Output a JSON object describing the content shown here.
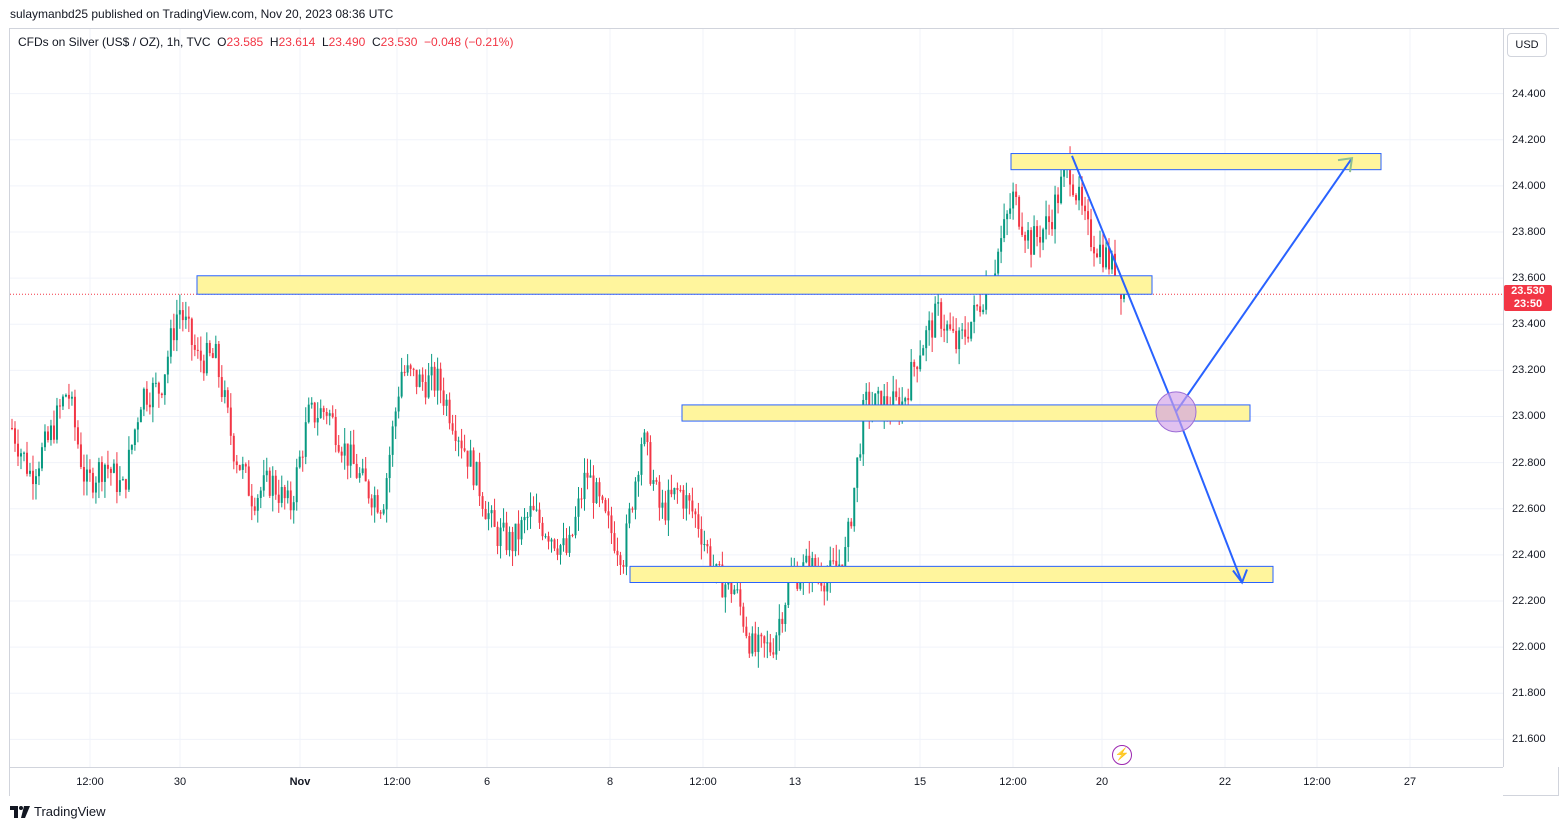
{
  "header": {
    "publish_line": "sulaymanbd25 published on TradingView.com, Nov 20, 2023 08:36 UTC"
  },
  "symbol": {
    "description": "CFDs on Silver (US$ / OZ), 1h, TVC",
    "open_label": "O",
    "open": "23.585",
    "high_label": "H",
    "high": "23.614",
    "low_label": "L",
    "low": "23.490",
    "close_label": "C",
    "close": "23.530",
    "change": "−0.048 (−0.21%)"
  },
  "currency_button": "USD",
  "price_axis": {
    "ticks": [
      "24.400",
      "24.200",
      "24.000",
      "23.800",
      "23.600",
      "23.400",
      "23.200",
      "23.000",
      "22.800",
      "22.600",
      "22.400",
      "22.200",
      "22.000",
      "21.800",
      "21.600"
    ]
  },
  "last_price": {
    "price": "23.530",
    "countdown": "23:50"
  },
  "time_axis": {
    "labels": [
      "12:00",
      "30",
      "Nov",
      "12:00",
      "6",
      "8",
      "12:00",
      "13",
      "15",
      "12:00",
      "20",
      "22",
      "12:00",
      "27"
    ]
  },
  "footer": {
    "brand": "TradingView"
  },
  "icons": {
    "lightning": "lightning-icon",
    "logo": "tradingview-logo-icon"
  },
  "colors": {
    "up": "#089981",
    "down": "#f23645",
    "zone_fill": "#fff59d",
    "zone_border": "#2962ff",
    "projection": "#2962ff",
    "marker": "#d1a0e8"
  },
  "chart_data": {
    "type": "candlestick",
    "interval": "1h",
    "ylim": [
      21.48,
      24.68
    ],
    "annotated_zones": [
      {
        "low": 23.53,
        "high": 23.61
      },
      {
        "low": 22.98,
        "high": 23.05
      },
      {
        "low": 22.28,
        "high": 22.35
      },
      {
        "low": 24.07,
        "high": 24.14
      }
    ],
    "price_series": [
      {
        "t": "Oct 27",
        "price": 22.95
      },
      {
        "t": "Oct 27",
        "price": 22.75
      },
      {
        "t": "Oct 27",
        "price": 22.9
      },
      {
        "t": "Oct 30",
        "price": 23.12
      },
      {
        "t": "Oct 30",
        "price": 22.7
      },
      {
        "t": "Oct 30",
        "price": 22.8
      },
      {
        "t": "Oct 30",
        "price": 22.68
      },
      {
        "t": "Oct 31",
        "price": 23.1
      },
      {
        "t": "Oct 31",
        "price": 23.12
      },
      {
        "t": "Oct 31",
        "price": 23.48
      },
      {
        "t": "Oct 31",
        "price": 23.25
      },
      {
        "t": "Nov 1",
        "price": 23.25
      },
      {
        "t": "Nov 1",
        "price": 22.85
      },
      {
        "t": "Nov 1",
        "price": 22.65
      },
      {
        "t": "Nov 1",
        "price": 22.72
      },
      {
        "t": "Nov 2",
        "price": 22.6
      },
      {
        "t": "Nov 2",
        "price": 23.0
      },
      {
        "t": "Nov 2",
        "price": 23.03
      },
      {
        "t": "Nov 2",
        "price": 22.85
      },
      {
        "t": "Nov 3",
        "price": 22.7
      },
      {
        "t": "Nov 3",
        "price": 22.62
      },
      {
        "t": "Nov 3",
        "price": 23.2
      },
      {
        "t": "Nov 6",
        "price": 23.15
      },
      {
        "t": "Nov 6",
        "price": 23.15
      },
      {
        "t": "Nov 6",
        "price": 22.95
      },
      {
        "t": "Nov 7",
        "price": 22.75
      },
      {
        "t": "Nov 7",
        "price": 22.5
      },
      {
        "t": "Nov 7",
        "price": 22.45
      },
      {
        "t": "Nov 7",
        "price": 22.58
      },
      {
        "t": "Nov 8",
        "price": 22.5
      },
      {
        "t": "Nov 8",
        "price": 22.4
      },
      {
        "t": "Nov 8",
        "price": 22.76
      },
      {
        "t": "Nov 8",
        "price": 22.55
      },
      {
        "t": "Nov 8",
        "price": 22.4
      },
      {
        "t": "Nov 9",
        "price": 22.92
      },
      {
        "t": "Nov 9",
        "price": 22.58
      },
      {
        "t": "Nov 9",
        "price": 22.68
      },
      {
        "t": "Nov 10",
        "price": 22.55
      },
      {
        "t": "Nov 10",
        "price": 22.3
      },
      {
        "t": "Nov 10",
        "price": 22.25
      },
      {
        "t": "Nov 13",
        "price": 21.98
      },
      {
        "t": "Nov 13",
        "price": 22.0
      },
      {
        "t": "Nov 13",
        "price": 22.3
      },
      {
        "t": "Nov 13",
        "price": 22.35
      },
      {
        "t": "Nov 14",
        "price": 22.3
      },
      {
        "t": "Nov 14",
        "price": 22.4
      },
      {
        "t": "Nov 14",
        "price": 23.05
      },
      {
        "t": "Nov 14",
        "price": 23.05
      },
      {
        "t": "Nov 15",
        "price": 23.05
      },
      {
        "t": "Nov 15",
        "price": 23.3
      },
      {
        "t": "Nov 15",
        "price": 23.45
      },
      {
        "t": "Nov 15",
        "price": 23.3
      },
      {
        "t": "Nov 16",
        "price": 23.45
      },
      {
        "t": "Nov 16",
        "price": 23.65
      },
      {
        "t": "Nov 16",
        "price": 23.95
      },
      {
        "t": "Nov 16",
        "price": 23.75
      },
      {
        "t": "Nov 17",
        "price": 23.85
      },
      {
        "t": "Nov 17",
        "price": 24.1
      },
      {
        "t": "Nov 17",
        "price": 23.8
      },
      {
        "t": "Nov 17",
        "price": 23.7
      },
      {
        "t": "Nov 20",
        "price": 23.55
      }
    ],
    "projection_path": [
      {
        "t": "Nov 17",
        "price": 24.13
      },
      {
        "t": "Nov 20",
        "price": 23.02
      },
      {
        "t": "Nov 22",
        "price": 22.28
      }
    ],
    "projection_path_alt": [
      {
        "t": "Nov 20",
        "price": 23.02
      },
      {
        "t": "Nov 24",
        "price": 24.12
      }
    ]
  }
}
